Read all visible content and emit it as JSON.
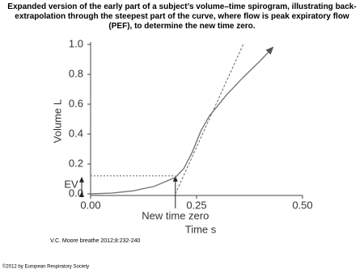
{
  "chart_data": {
    "type": "line",
    "title": "Expanded version of the early part of a subject’s volume–time spirogram, illustrating back-extrapolation through the steepest part of the curve, where flow is peak expiratory flow (PEF), to determine the new time zero.",
    "x_label": "Time s",
    "y_label": "Volume L",
    "x": [
      0,
      0.05,
      0.1,
      0.15,
      0.2,
      0.22,
      0.24,
      0.26,
      0.28,
      0.32,
      0.36,
      0.4,
      0.43
    ],
    "values": [
      0,
      0.005,
      0.02,
      0.05,
      0.11,
      0.17,
      0.28,
      0.42,
      0.52,
      0.66,
      0.78,
      0.89,
      0.98
    ],
    "color": "#777777",
    "tangent": {
      "x": [
        0.2,
        0.36
      ],
      "values": [
        0,
        1.0
      ]
    },
    "ev_level": 0.12,
    "new_time_zero": 0.2,
    "ev_label": "EV",
    "new_time_zero_label": "New time zero",
    "xlim": [
      0,
      0.5
    ],
    "ylim": [
      0,
      1.0
    ],
    "xticks": [
      {
        "value": 0,
        "label": "0.00"
      },
      0.25,
      {
        "value": 0.5,
        "label": "0.50"
      }
    ],
    "yticks": [
      {
        "value": 0,
        "label": "0.0"
      },
      0.2,
      0.4,
      0.6,
      0.8,
      {
        "value": 1.0,
        "label": "1.0"
      }
    ],
    "source": "V.C. Moore breathe 2012;8:232-240",
    "copyright": "©2012 by European Respiratory Society"
  }
}
